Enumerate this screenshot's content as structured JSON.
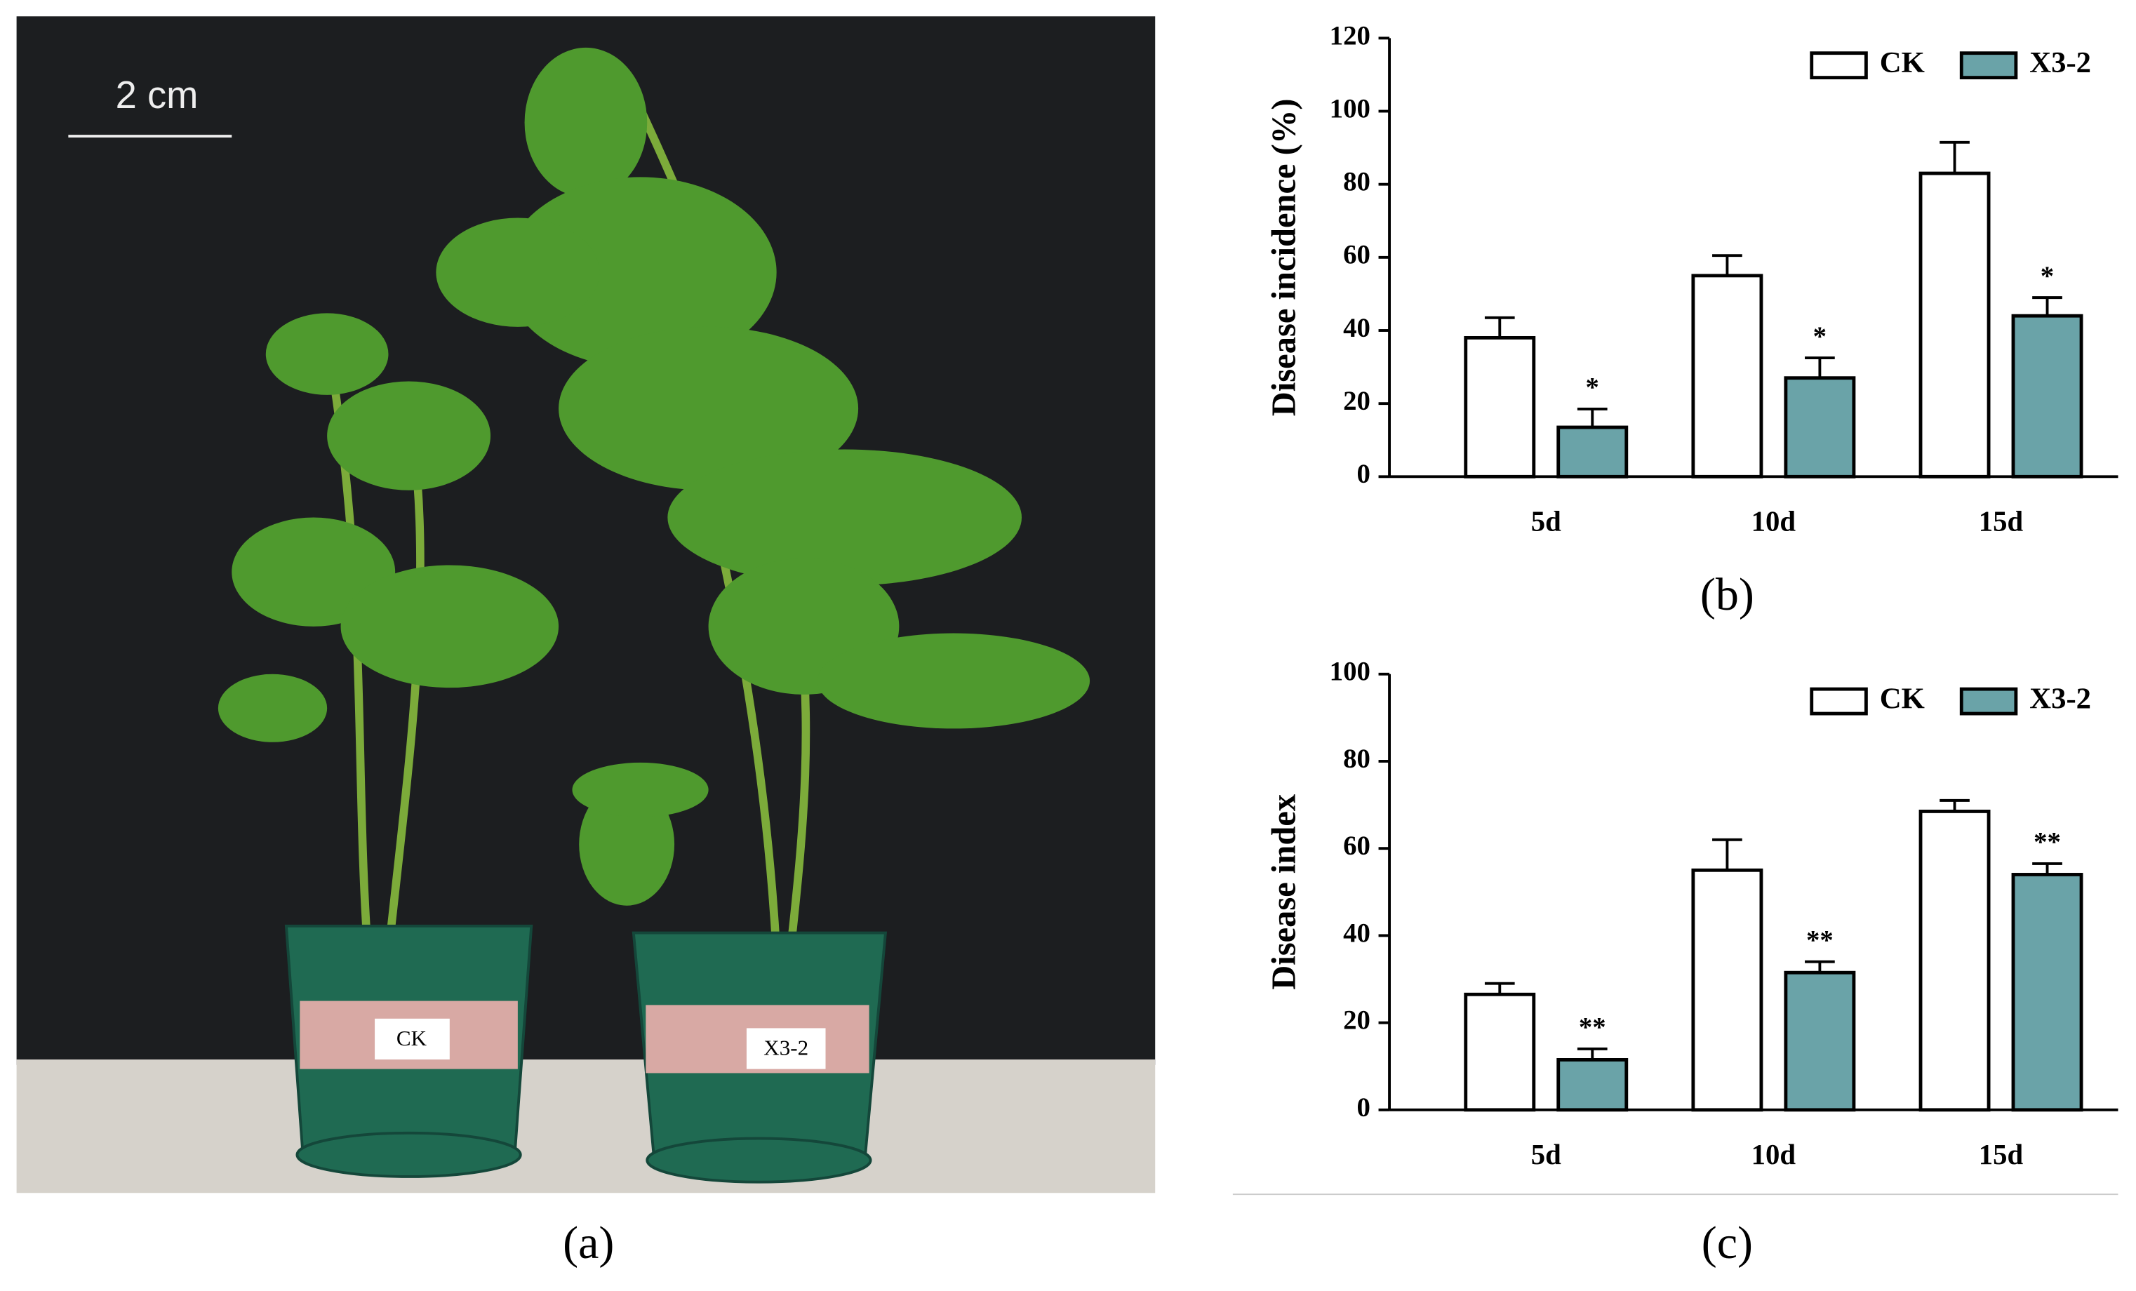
{
  "photo": {
    "scale_label": "2 cm",
    "pot_labels": [
      "CK",
      "X3-2"
    ],
    "caption": "(a)"
  },
  "chart_data": [
    {
      "type": "bar",
      "caption": "(b)",
      "ylabel": "Disease incidence (%)",
      "categories": [
        "5d",
        "10d",
        "15d"
      ],
      "series": [
        {
          "name": "CK",
          "color": "#ffffff",
          "edgecolor": "#000000",
          "values": [
            38,
            55,
            83
          ],
          "errors": [
            5.5,
            5.5,
            8.5
          ]
        },
        {
          "name": "X3-2",
          "color": "#6aa3a8",
          "edgecolor": "#000000",
          "values": [
            13.5,
            27,
            44
          ],
          "errors": [
            5,
            5.5,
            5
          ],
          "significance": [
            "*",
            "*",
            "*"
          ]
        }
      ],
      "ylim": [
        0,
        120
      ],
      "yticks": [
        0,
        20,
        40,
        60,
        80,
        100,
        120
      ],
      "legend": "upper right"
    },
    {
      "type": "bar",
      "caption": "(c)",
      "ylabel": "Disease index",
      "categories": [
        "5d",
        "10d",
        "15d"
      ],
      "series": [
        {
          "name": "CK",
          "color": "#ffffff",
          "edgecolor": "#000000",
          "values": [
            26.5,
            55,
            68.5
          ],
          "errors": [
            2.5,
            7,
            2.5
          ]
        },
        {
          "name": "X3-2",
          "color": "#6aa3a8",
          "edgecolor": "#000000",
          "values": [
            11.5,
            31.5,
            54
          ],
          "errors": [
            2.5,
            2.5,
            2.5
          ],
          "significance": [
            "**",
            "**",
            "**"
          ]
        }
      ],
      "ylim": [
        0,
        100
      ],
      "yticks": [
        0,
        20,
        40,
        60,
        80,
        100
      ],
      "legend": "upper right"
    }
  ]
}
